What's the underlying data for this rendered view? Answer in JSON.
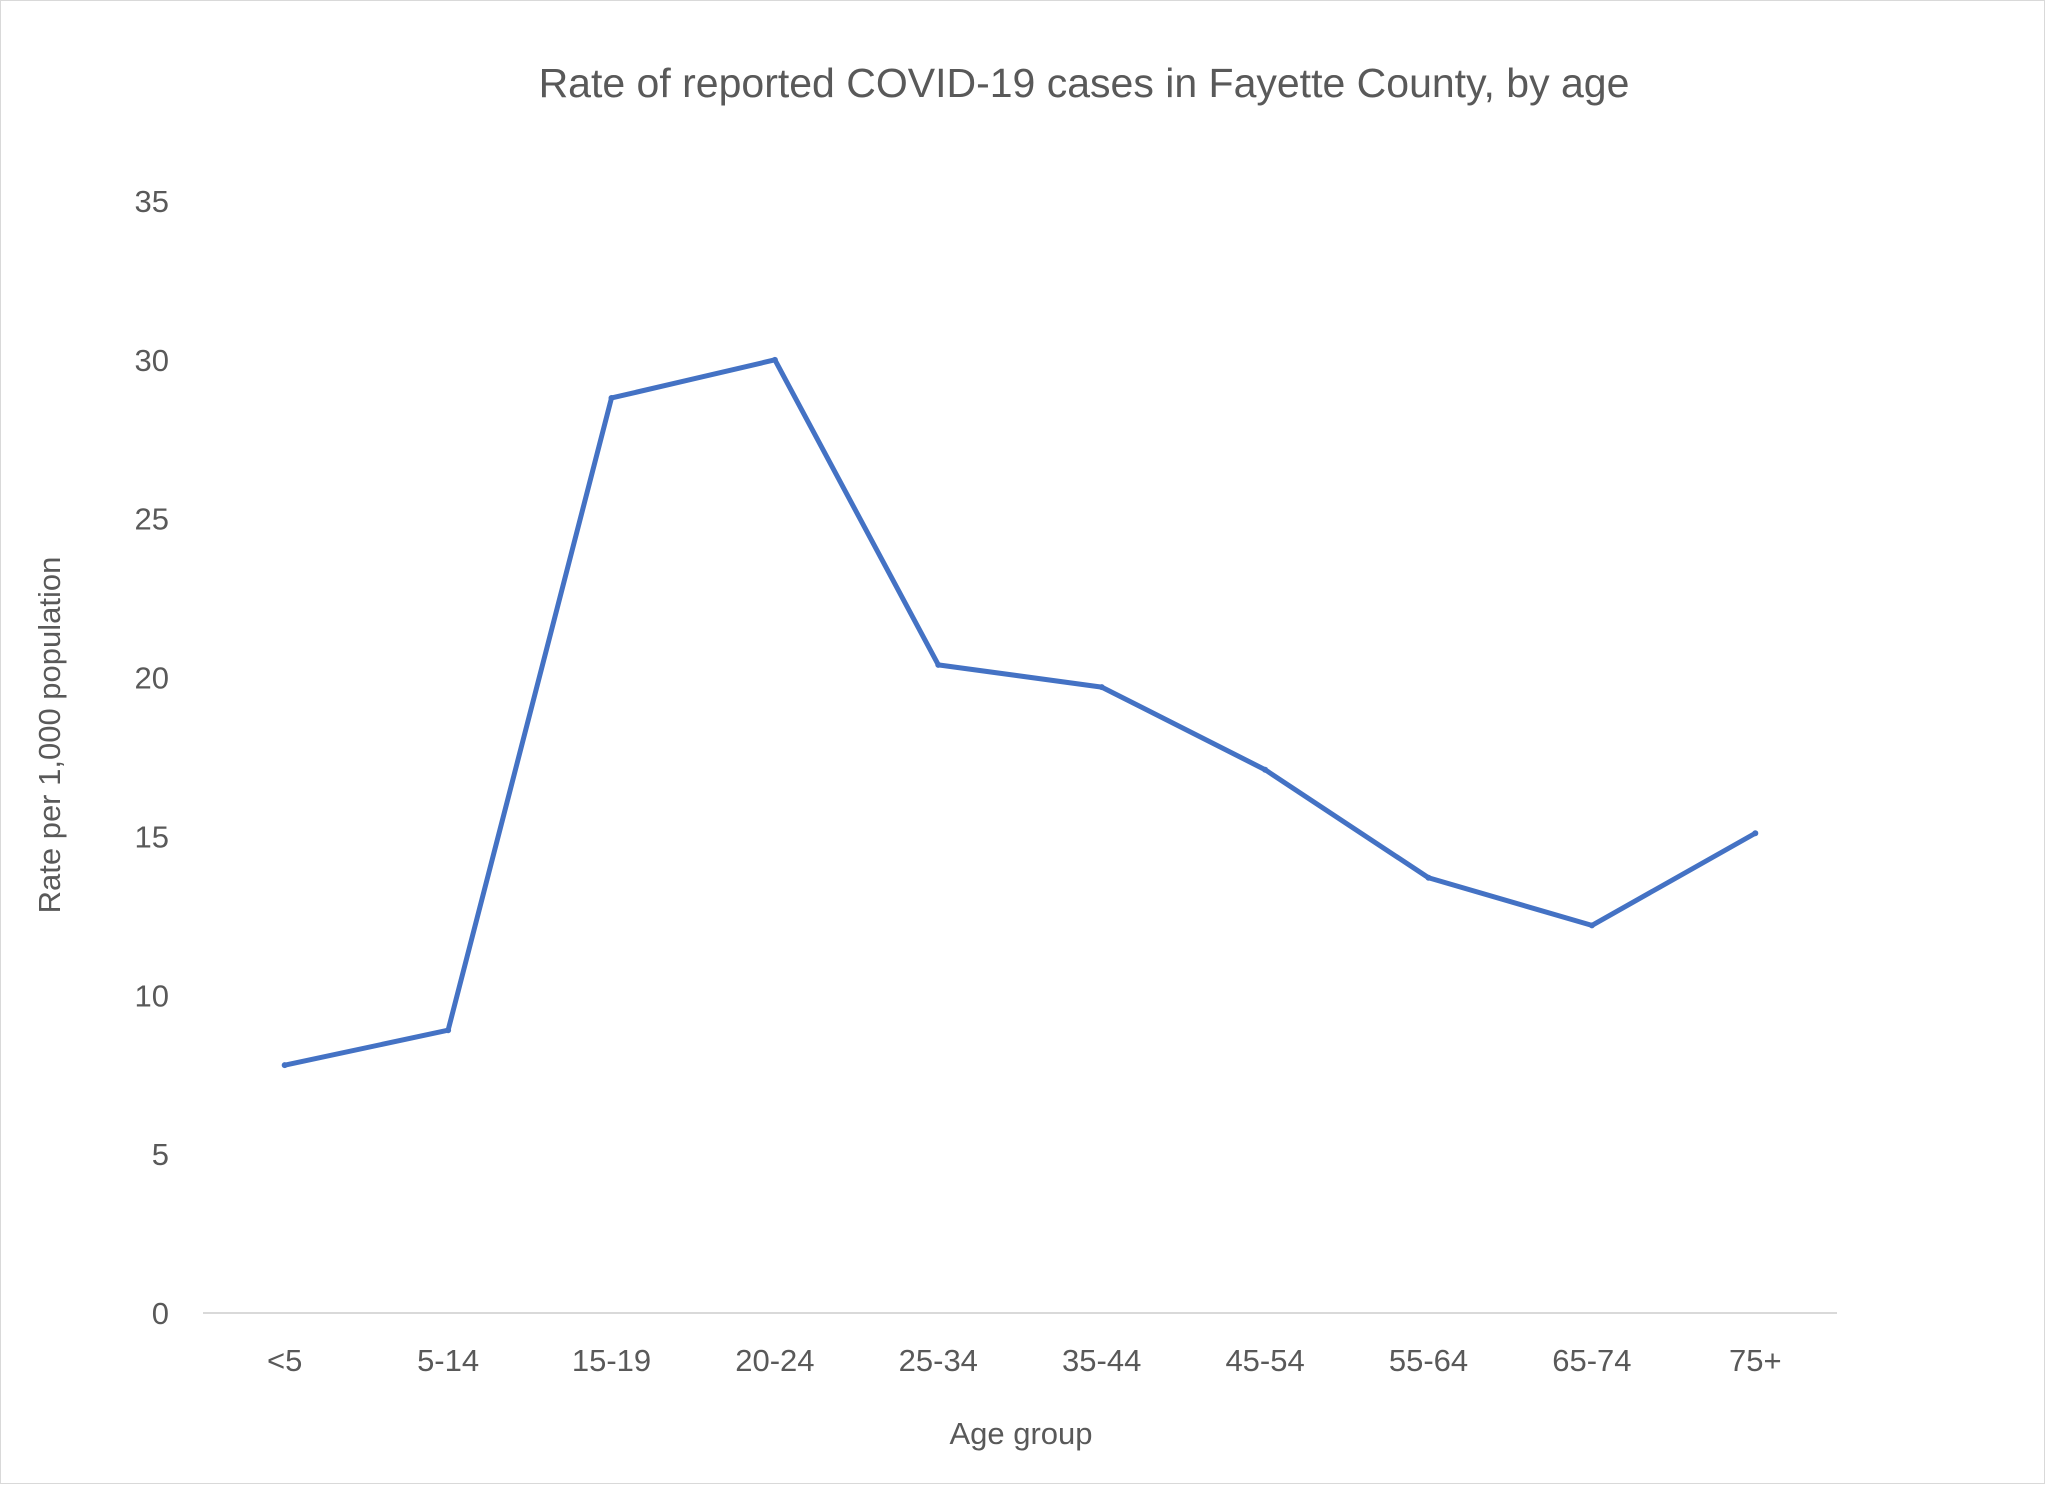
{
  "chart_data": {
    "type": "line",
    "title": "Rate of reported COVID-19 cases in Fayette County, by age",
    "xlabel": "Age group",
    "ylabel": "Rate per 1,000 population",
    "categories": [
      "<5",
      "5-14",
      "15-19",
      "20-24",
      "25-34",
      "35-44",
      "45-54",
      "55-64",
      "65-74",
      "75+"
    ],
    "series": [
      {
        "values": [
          7.8,
          8.9,
          28.8,
          30.0,
          20.4,
          19.7,
          17.1,
          13.7,
          12.2,
          15.1
        ]
      }
    ],
    "ylim": [
      0,
      35
    ],
    "yticks": [
      "0",
      "5",
      "10",
      "15",
      "20",
      "25",
      "30",
      "35"
    ],
    "grid": false,
    "legend": "none",
    "colors": {
      "line": "#4472C4",
      "axis": "#d9d9d9",
      "text": "#595959"
    }
  }
}
